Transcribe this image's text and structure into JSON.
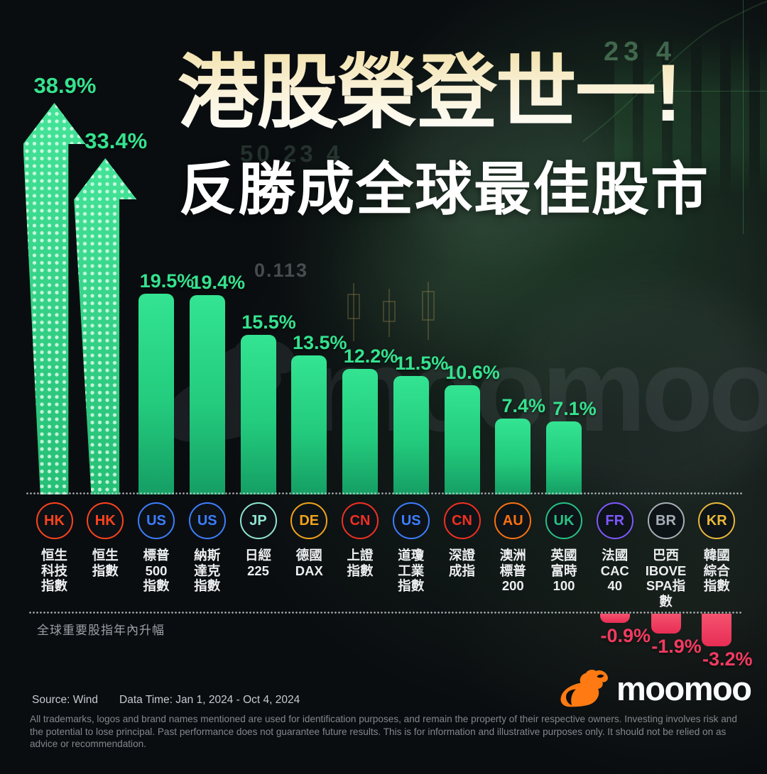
{
  "title": {
    "line1": "港股榮登世一!",
    "line2": "反勝成全球最佳股市"
  },
  "chart_data": {
    "type": "bar",
    "title": "港股榮登世一! 反勝成全球最佳股市",
    "caption": "全球重要股指年內升幅",
    "value_unit": "%",
    "ylim": [
      -3.2,
      38.9
    ],
    "grid": false,
    "categories": [
      "恒生科技指數",
      "恒生指數",
      "標普500指數",
      "納斯達克指數",
      "日經225",
      "德國DAX",
      "上證指數",
      "道瓊工業指數",
      "深證成指",
      "澳洲標普200",
      "英國富時100",
      "法國CAC 40",
      "巴西IBOVESPA指數",
      "韓國綜合指數"
    ],
    "values": [
      38.9,
      33.4,
      19.5,
      19.4,
      15.5,
      13.5,
      12.2,
      11.5,
      10.6,
      7.4,
      7.1,
      -0.9,
      -1.9,
      -3.2
    ],
    "bars": [
      {
        "country": "HK",
        "index_lines": [
          "恒生",
          "科技",
          "指數"
        ],
        "value": 38.9,
        "label": "38.9%",
        "style": "arrow",
        "badge_color": "#ff431c"
      },
      {
        "country": "HK",
        "index_lines": [
          "恒生",
          "指數"
        ],
        "value": 33.4,
        "label": "33.4%",
        "style": "arrow",
        "badge_color": "#ff431c"
      },
      {
        "country": "US",
        "index_lines": [
          "標普",
          "500",
          "指數"
        ],
        "value": 19.5,
        "label": "19.5%",
        "style": "bar",
        "badge_color": "#3d7eff"
      },
      {
        "country": "US",
        "index_lines": [
          "納斯",
          "達克",
          "指數"
        ],
        "value": 19.4,
        "label": "19.4%",
        "style": "bar",
        "badge_color": "#3d7eff"
      },
      {
        "country": "JP",
        "index_lines": [
          "日經",
          "225"
        ],
        "value": 15.5,
        "label": "15.5%",
        "style": "bar",
        "badge_color": "#8fe5d2"
      },
      {
        "country": "DE",
        "index_lines": [
          "德國",
          "DAX"
        ],
        "value": 13.5,
        "label": "13.5%",
        "style": "bar",
        "badge_color": "#f2a31b"
      },
      {
        "country": "CN",
        "index_lines": [
          "上證",
          "指數"
        ],
        "value": 12.2,
        "label": "12.2%",
        "style": "bar",
        "badge_color": "#f03022"
      },
      {
        "country": "US",
        "index_lines": [
          "道瓊",
          "工業",
          "指數"
        ],
        "value": 11.5,
        "label": "11.5%",
        "style": "bar",
        "badge_color": "#3d7eff"
      },
      {
        "country": "CN",
        "index_lines": [
          "深證",
          "成指"
        ],
        "value": 10.6,
        "label": "10.6%",
        "style": "bar",
        "badge_color": "#f03022"
      },
      {
        "country": "AU",
        "index_lines": [
          "澳洲",
          "標普",
          "200"
        ],
        "value": 7.4,
        "label": "7.4%",
        "style": "bar",
        "badge_color": "#fa7111"
      },
      {
        "country": "UK",
        "index_lines": [
          "英國",
          "富時",
          "100"
        ],
        "value": 7.1,
        "label": "7.1%",
        "style": "bar",
        "badge_color": "#27c183"
      },
      {
        "country": "FR",
        "index_lines": [
          "法國",
          "CAC",
          "40"
        ],
        "value": -0.9,
        "label": "-0.9%",
        "style": "neg",
        "badge_color": "#7e58ff"
      },
      {
        "country": "BR",
        "index_lines": [
          "巴西",
          "IBOVE",
          "SPA指",
          "數"
        ],
        "value": -1.9,
        "label": "-1.9%",
        "style": "neg",
        "badge_color": "#a9afb6"
      },
      {
        "country": "KR",
        "index_lines": [
          "韓國",
          "綜合",
          "指數"
        ],
        "value": -3.2,
        "label": "-3.2%",
        "style": "neg",
        "badge_color": "#e9b83c"
      }
    ],
    "colors": {
      "positive": "#2ee28c",
      "negative": "#ef3e62",
      "value_label_positive": "#35e28e",
      "value_label_negative": "#f43a60"
    }
  },
  "watermark": {
    "text": "moomoo"
  },
  "background": {
    "ticker_top_right": "23 4",
    "ticker_mid": "50 23 4",
    "ticker_number": "0.113"
  },
  "footer": {
    "source": "Source: Wind",
    "data_time": "Data Time: Jan 1, 2024 - Oct 4, 2024",
    "disclaimer": "All trademarks, logos and brand names mentioned are used for identification purposes, and remain the property of their respective owners. Investing involves risk and the potential to lose principal. Past performance does not guarantee future results. This is for information and illustrative purposes only. It should not be relied on as advice or recommendation.",
    "brand": "moomoo"
  }
}
